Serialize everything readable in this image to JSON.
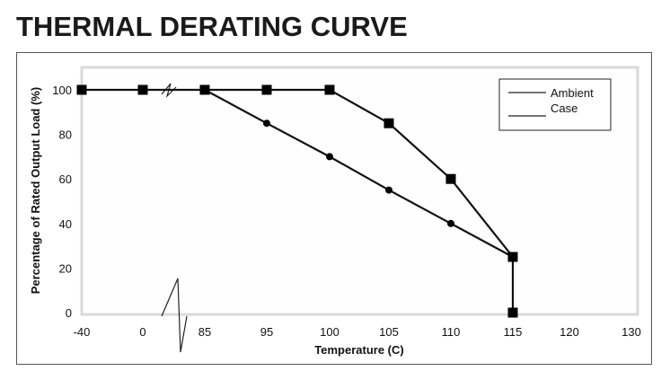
{
  "title": "THERMAL DERATING CURVE",
  "chart_data": {
    "type": "line",
    "xlabel": "Temperature (C)",
    "ylabel": "Percentage of Rated Output Load (%)",
    "x_tick_labels": [
      "-40",
      "0",
      "85",
      "95",
      "100",
      "105",
      "110",
      "115",
      "120",
      "130"
    ],
    "y_tick_labels": [
      "0",
      "20",
      "40",
      "60",
      "80",
      "100"
    ],
    "ylim": [
      0,
      110
    ],
    "axis_break": "between 0 and 85 on the x axis",
    "grid": false,
    "legend_position": "top-right",
    "legend": [
      "Ambient",
      "Case"
    ],
    "series": [
      {
        "name": "Ambient",
        "marker": "square",
        "points": [
          {
            "x": -40,
            "y": 100
          },
          {
            "x": 0,
            "y": 100
          },
          {
            "x": 85,
            "y": 100
          },
          {
            "x": 95,
            "y": 100
          },
          {
            "x": 100,
            "y": 100
          },
          {
            "x": 105,
            "y": 85
          },
          {
            "x": 110,
            "y": 60
          },
          {
            "x": 115,
            "y": 25
          },
          {
            "x": 115,
            "y": 0
          }
        ]
      },
      {
        "name": "Case",
        "marker": "circle",
        "points": [
          {
            "x": 85,
            "y": 100
          },
          {
            "x": 95,
            "y": 85
          },
          {
            "x": 100,
            "y": 70
          },
          {
            "x": 105,
            "y": 55
          },
          {
            "x": 110,
            "y": 40
          },
          {
            "x": 115,
            "y": 25
          }
        ]
      }
    ]
  }
}
